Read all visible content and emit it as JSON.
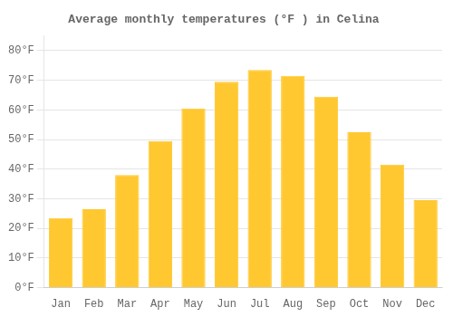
{
  "chart_data": {
    "type": "bar",
    "title": "Average monthly temperatures (°F ) in Celina",
    "categories": [
      "Jan",
      "Feb",
      "Mar",
      "Apr",
      "May",
      "Jun",
      "Jul",
      "Aug",
      "Sep",
      "Oct",
      "Nov",
      "Dec"
    ],
    "values": [
      23.5,
      26.5,
      38.0,
      49.5,
      60.5,
      69.5,
      73.5,
      71.5,
      64.5,
      52.5,
      41.5,
      29.5
    ],
    "color": "#FFC830",
    "ylim": [
      0,
      85
    ],
    "yticks": [
      {
        "value": 0,
        "label": "0°F"
      },
      {
        "value": 10,
        "label": "10°F"
      },
      {
        "value": 20,
        "label": "20°F"
      },
      {
        "value": 30,
        "label": "30°F"
      },
      {
        "value": 40,
        "label": "40°F"
      },
      {
        "value": 50,
        "label": "50°F"
      },
      {
        "value": 60,
        "label": "60°F"
      },
      {
        "value": 70,
        "label": "70°F"
      },
      {
        "value": 80,
        "label": "80°F"
      }
    ],
    "grid": true
  }
}
